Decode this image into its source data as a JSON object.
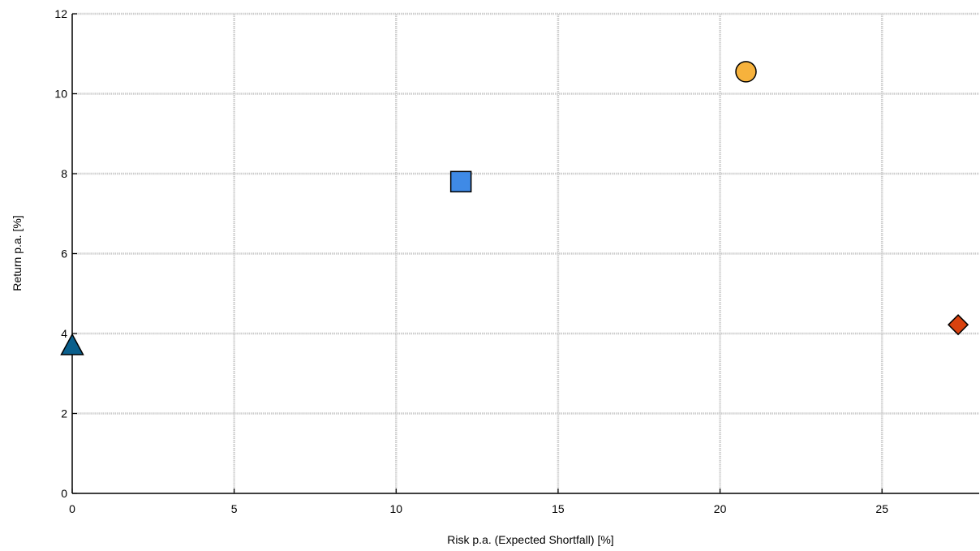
{
  "chart_data": {
    "type": "scatter",
    "title": "",
    "xlabel": "Risk p.a. (Expected Shortfall) [%]",
    "ylabel": "Return p.a. [%]",
    "xlim": [
      0,
      28
    ],
    "ylim": [
      0,
      12
    ],
    "x_ticks": [
      0,
      5,
      10,
      15,
      20,
      25
    ],
    "x_tick_labels": [
      "0",
      "5",
      "10",
      "15",
      "20",
      "25"
    ],
    "y_ticks": [
      0,
      2,
      4,
      6,
      8,
      10,
      12
    ],
    "y_tick_labels": [
      "0",
      "2",
      "4",
      "6",
      "8",
      "10",
      "12"
    ],
    "grid": true,
    "legend": "none",
    "points": [
      {
        "x": 0,
        "y": 3.7,
        "shape": "triangle",
        "color": "#0a5f8c"
      },
      {
        "x": 12.0,
        "y": 7.8,
        "shape": "square",
        "color": "#3f8ae6"
      },
      {
        "x": 20.8,
        "y": 10.55,
        "shape": "circle",
        "color": "#f7b23c"
      },
      {
        "x": 27.35,
        "y": 4.22,
        "shape": "diamond",
        "color": "#d9420f"
      }
    ]
  }
}
